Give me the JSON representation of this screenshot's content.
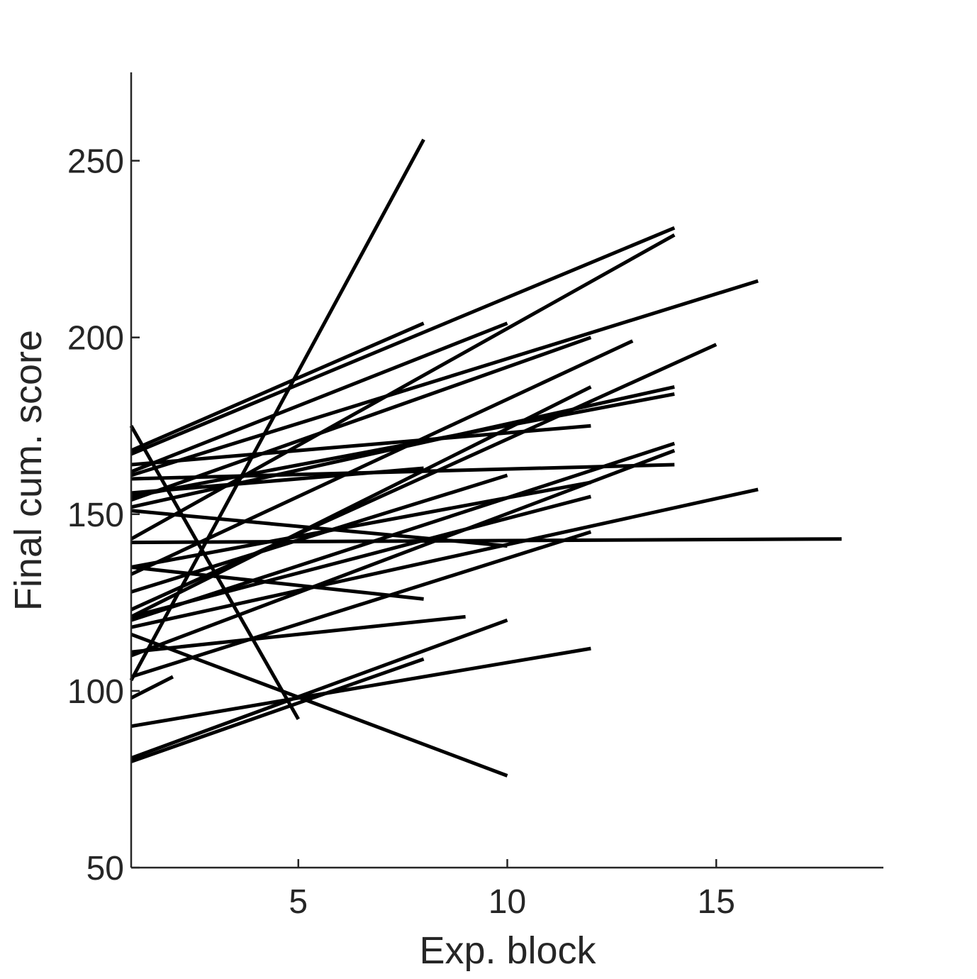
{
  "chart_data": {
    "type": "line",
    "title": "",
    "xlabel": "Exp. block",
    "ylabel": "Final cum. score",
    "xlim": [
      1,
      19
    ],
    "ylim": [
      50,
      275
    ],
    "xticks": [
      5,
      10,
      15
    ],
    "yticks": [
      50,
      100,
      150,
      200,
      250
    ],
    "grid": false,
    "legend": "none",
    "line_color": "#000000",
    "axis_color": "#262626",
    "series": [
      {
        "x": [
          1,
          8
        ],
        "y": [
          168,
          204
        ]
      },
      {
        "x": [
          1,
          10
        ],
        "y": [
          162,
          204
        ]
      },
      {
        "x": [
          1,
          14
        ],
        "y": [
          167,
          231
        ]
      },
      {
        "x": [
          1,
          14
        ],
        "y": [
          143,
          229
        ]
      },
      {
        "x": [
          1,
          16
        ],
        "y": [
          161,
          216
        ]
      },
      {
        "x": [
          1,
          12
        ],
        "y": [
          154,
          200
        ]
      },
      {
        "x": [
          1,
          13
        ],
        "y": [
          133,
          199
        ]
      },
      {
        "x": [
          1,
          15
        ],
        "y": [
          123,
          198
        ]
      },
      {
        "x": [
          1,
          12
        ],
        "y": [
          121,
          186
        ]
      },
      {
        "x": [
          1,
          14
        ],
        "y": [
          152,
          186
        ]
      },
      {
        "x": [
          1,
          14
        ],
        "y": [
          155,
          184
        ]
      },
      {
        "x": [
          1,
          12
        ],
        "y": [
          164,
          175
        ]
      },
      {
        "x": [
          1,
          14
        ],
        "y": [
          120,
          170
        ]
      },
      {
        "x": [
          1,
          14
        ],
        "y": [
          110,
          168
        ]
      },
      {
        "x": [
          1,
          14
        ],
        "y": [
          160,
          164
        ]
      },
      {
        "x": [
          1,
          8
        ],
        "y": [
          156,
          163
        ]
      },
      {
        "x": [
          1,
          10
        ],
        "y": [
          128,
          161
        ]
      },
      {
        "x": [
          1,
          12
        ],
        "y": [
          135,
          159
        ]
      },
      {
        "x": [
          1,
          16
        ],
        "y": [
          118,
          157
        ]
      },
      {
        "x": [
          1,
          12
        ],
        "y": [
          121,
          155
        ]
      },
      {
        "x": [
          1,
          12
        ],
        "y": [
          104,
          145
        ]
      },
      {
        "x": [
          1,
          18
        ],
        "y": [
          142,
          143
        ]
      },
      {
        "x": [
          1,
          10
        ],
        "y": [
          151,
          141
        ]
      },
      {
        "x": [
          1,
          8
        ],
        "y": [
          135,
          126
        ]
      },
      {
        "x": [
          1,
          9
        ],
        "y": [
          111,
          121
        ]
      },
      {
        "x": [
          1,
          10
        ],
        "y": [
          81,
          120
        ]
      },
      {
        "x": [
          1,
          12
        ],
        "y": [
          90,
          112
        ]
      },
      {
        "x": [
          1,
          8
        ],
        "y": [
          80,
          109
        ]
      },
      {
        "x": [
          1,
          2
        ],
        "y": [
          98,
          104
        ]
      },
      {
        "x": [
          1,
          8
        ],
        "y": [
          103,
          256
        ]
      },
      {
        "x": [
          1,
          5
        ],
        "y": [
          175,
          92
        ]
      },
      {
        "x": [
          1,
          10
        ],
        "y": [
          116,
          76
        ]
      }
    ]
  }
}
